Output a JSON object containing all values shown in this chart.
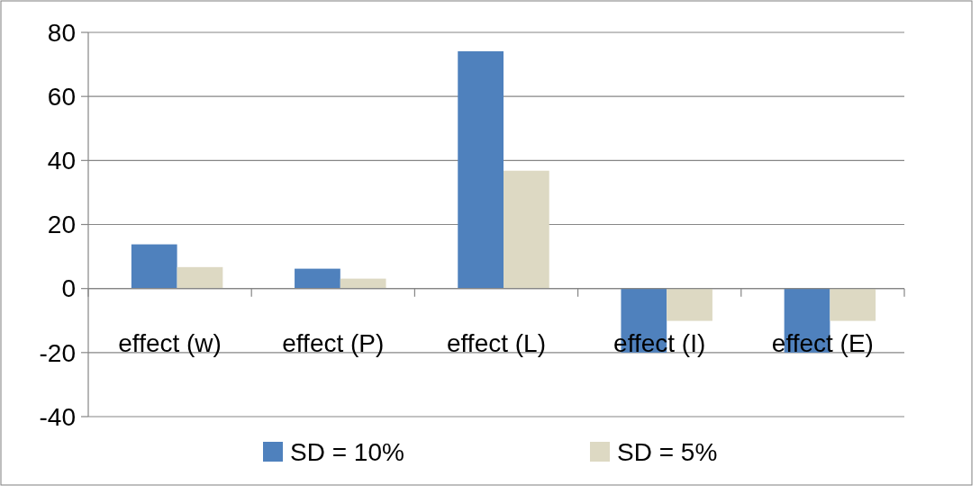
{
  "chart_data": {
    "type": "bar",
    "categories": [
      "effect (w)",
      "effect (P)",
      "effect (L)",
      "effect (I)",
      "effect (E)"
    ],
    "series": [
      {
        "name": "SD = 10%",
        "color": "#4f81bd",
        "values": [
          13.8,
          6.2,
          74.1,
          -20,
          -20
        ]
      },
      {
        "name": "SD = 5%",
        "color": "#ddd9c3",
        "values": [
          6.7,
          3.1,
          36.8,
          -10.1,
          -10.1
        ]
      }
    ],
    "ylim": [
      -40,
      80
    ],
    "yticks": [
      -40,
      -20,
      0,
      20,
      40,
      60,
      80
    ],
    "grid": "y",
    "legend": "bottom"
  }
}
